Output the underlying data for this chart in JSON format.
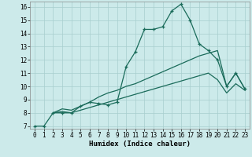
{
  "title": "",
  "xlabel": "Humidex (Indice chaleur)",
  "bg_color": "#cceaea",
  "line_color": "#1a6b5a",
  "xlim": [
    -0.5,
    23.5
  ],
  "ylim": [
    6.8,
    16.4
  ],
  "xticks": [
    0,
    1,
    2,
    3,
    4,
    5,
    6,
    7,
    8,
    9,
    10,
    11,
    12,
    13,
    14,
    15,
    16,
    17,
    18,
    19,
    20,
    21,
    22,
    23
  ],
  "yticks": [
    7,
    8,
    9,
    10,
    11,
    12,
    13,
    14,
    15,
    16
  ],
  "line1_x": [
    0,
    1,
    2,
    3,
    4,
    5,
    6,
    7,
    8,
    9,
    10,
    11,
    12,
    13,
    14,
    15,
    16,
    17,
    18,
    19,
    20,
    21,
    22,
    23
  ],
  "line1_y": [
    7.0,
    7.0,
    8.0,
    8.0,
    8.0,
    8.5,
    8.8,
    8.7,
    8.6,
    8.8,
    11.5,
    12.6,
    14.3,
    14.3,
    14.5,
    15.7,
    16.2,
    15.0,
    13.2,
    12.7,
    12.0,
    10.0,
    11.0,
    9.8
  ],
  "line2_x": [
    2,
    3,
    4,
    5,
    6,
    7,
    8,
    9,
    10,
    11,
    12,
    13,
    14,
    15,
    16,
    17,
    18,
    19,
    20,
    21,
    22,
    23
  ],
  "line2_y": [
    8.0,
    8.3,
    8.2,
    8.5,
    8.8,
    9.2,
    9.5,
    9.7,
    10.0,
    10.2,
    10.5,
    10.8,
    11.1,
    11.4,
    11.7,
    12.0,
    12.3,
    12.5,
    12.7,
    10.0,
    11.0,
    9.8
  ],
  "line3_x": [
    2,
    3,
    4,
    5,
    6,
    7,
    8,
    9,
    10,
    11,
    12,
    13,
    14,
    15,
    16,
    17,
    18,
    19,
    20,
    21,
    22,
    23
  ],
  "line3_y": [
    8.0,
    8.1,
    8.0,
    8.2,
    8.4,
    8.6,
    8.8,
    9.0,
    9.2,
    9.4,
    9.6,
    9.8,
    10.0,
    10.2,
    10.4,
    10.6,
    10.8,
    11.0,
    10.5,
    9.5,
    10.2,
    9.7
  ],
  "marker_size": 3.5,
  "line_width": 0.9,
  "font_size_axis": 6.5,
  "font_size_ticks": 5.5
}
